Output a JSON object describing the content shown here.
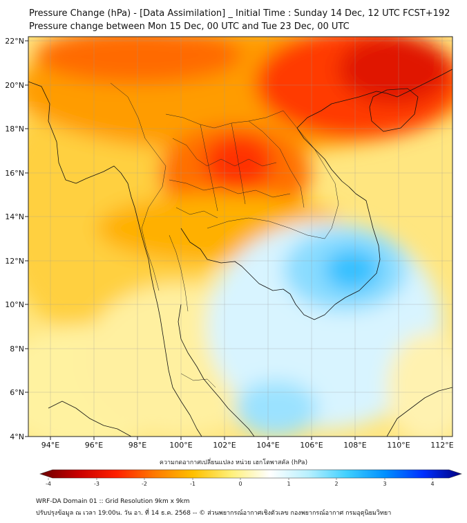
{
  "title_line1": "Pressure Change (hPa) - [Data Assimilation] _ Initial Time : Sunday 14 Dec, 12 UTC FCST+192",
  "title_line2": "Pressure change between Mon 15 Dec, 00 UTC and Tue 23 Dec, 00 UTC",
  "lat_ticks": [
    "22°N",
    "20°N",
    "18°N",
    "16°N",
    "14°N",
    "12°N",
    "10°N",
    "8°N",
    "6°N",
    "4°N"
  ],
  "lon_ticks": [
    "94°E",
    "96°E",
    "98°E",
    "100°E",
    "102°E",
    "104°E",
    "106°E",
    "108°E",
    "110°E",
    "112°E"
  ],
  "colorbar": {
    "label": "ความกดอากาศเปลี่ยนแปลง หน่วย เฮกโตพาสคัล (hPa)",
    "ticks": [
      "-4",
      "-3",
      "-2",
      "-1",
      "0",
      "1",
      "2",
      "3",
      "4"
    ],
    "colors": [
      "#6b0000",
      "#c80000",
      "#ff2000",
      "#ff7a00",
      "#ffc000",
      "#fff07a",
      "#ffffff",
      "#b8f0ff",
      "#40d0ff",
      "#0090ff",
      "#0030ff",
      "#000080"
    ]
  },
  "field_colors": {
    "strong_fall": "#e81e00",
    "fall": "#ff5a00",
    "moderate_fall": "#ffa600",
    "weak_fall": "#ffd84a",
    "near_zero": "#fff2a0",
    "weak_rise": "#d8f4ff",
    "rise": "#7ad8ff",
    "strong_rise": "#36c0ff"
  },
  "footer_line1": "WRF-DA Domain 01 :: Grid Resolution 9km x 9km",
  "footer_line2": "ปรับปรุงข้อมูล ณ เวลา 19:00น. วัน อา. ที่ 14 ธ.ค. 2568 -- © ส่วนพยากรณ์อากาศเชิงตัวเลข กองพยากรณ์อากาศ กรมอุตุนิยมวิทยา"
}
